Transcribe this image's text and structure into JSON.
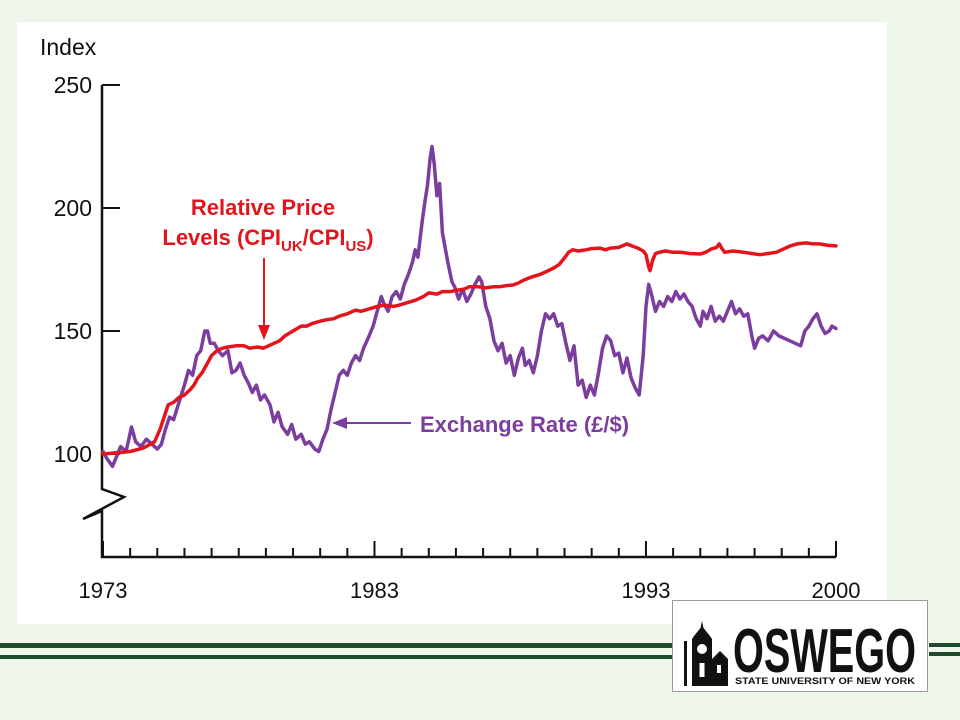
{
  "slide": {
    "background_color": "#eef5ea",
    "rule_color": "#1f4a2b"
  },
  "chart_data": {
    "type": "line",
    "ylabel": "Index",
    "xlim": [
      1973,
      2000
    ],
    "ylim": [
      100,
      250
    ],
    "y_axis_break": true,
    "x_ticks": [
      1973,
      1983,
      1993,
      2000
    ],
    "x_minor_tick_step": 1,
    "y_ticks": [
      250,
      200,
      150,
      100
    ],
    "grid": false,
    "series": [
      {
        "label_parts": [
          "Relative Price",
          "Levels (CPI",
          "UK",
          "/CPI",
          "US",
          ")"
        ],
        "color": "#e2141c",
        "points": [
          [
            1973.0,
            100
          ],
          [
            1973.5,
            100.5
          ],
          [
            1974.0,
            101
          ],
          [
            1974.5,
            102.5
          ],
          [
            1974.9,
            105
          ],
          [
            1975.1,
            110
          ],
          [
            1975.25,
            115
          ],
          [
            1975.4,
            120
          ],
          [
            1975.6,
            121
          ],
          [
            1975.8,
            123
          ],
          [
            1976.0,
            124
          ],
          [
            1976.2,
            126
          ],
          [
            1976.35,
            128
          ],
          [
            1976.5,
            131
          ],
          [
            1976.65,
            133
          ],
          [
            1976.8,
            136
          ],
          [
            1977.0,
            140
          ],
          [
            1977.2,
            142
          ],
          [
            1977.4,
            143
          ],
          [
            1977.6,
            143.5
          ],
          [
            1977.9,
            144
          ],
          [
            1978.2,
            144
          ],
          [
            1978.4,
            143
          ],
          [
            1978.7,
            143.5
          ],
          [
            1978.9,
            143
          ],
          [
            1979.1,
            144
          ],
          [
            1979.3,
            145
          ],
          [
            1979.5,
            146
          ],
          [
            1979.7,
            148
          ],
          [
            1980.0,
            150
          ],
          [
            1980.3,
            152
          ],
          [
            1980.5,
            152
          ],
          [
            1980.7,
            153
          ],
          [
            1981.0,
            154
          ],
          [
            1981.2,
            154.5
          ],
          [
            1981.5,
            155
          ],
          [
            1981.7,
            156
          ],
          [
            1982.0,
            157
          ],
          [
            1982.3,
            158.5
          ],
          [
            1982.5,
            158
          ],
          [
            1982.8,
            159
          ],
          [
            1983.1,
            160
          ],
          [
            1983.4,
            160.5
          ],
          [
            1983.7,
            160
          ],
          [
            1983.9,
            160.5
          ],
          [
            1984.2,
            161.5
          ],
          [
            1984.5,
            162.5
          ],
          [
            1984.8,
            164
          ],
          [
            1985.0,
            165.5
          ],
          [
            1985.3,
            165
          ],
          [
            1985.5,
            166
          ],
          [
            1985.8,
            166
          ],
          [
            1986.0,
            166.5
          ],
          [
            1986.3,
            167
          ],
          [
            1986.5,
            168
          ],
          [
            1986.8,
            168
          ],
          [
            1987.1,
            167.5
          ],
          [
            1987.4,
            168
          ],
          [
            1987.6,
            168
          ],
          [
            1987.9,
            168.5
          ],
          [
            1988.1,
            168.7
          ],
          [
            1988.3,
            169.5
          ],
          [
            1988.5,
            170.7
          ],
          [
            1988.8,
            172
          ],
          [
            1989.1,
            173
          ],
          [
            1989.3,
            174
          ],
          [
            1989.6,
            175.6
          ],
          [
            1989.8,
            177
          ],
          [
            1990.0,
            179.7
          ],
          [
            1990.15,
            182
          ],
          [
            1990.3,
            183
          ],
          [
            1990.5,
            182.5
          ],
          [
            1990.8,
            183
          ],
          [
            1991.0,
            183.5
          ],
          [
            1991.3,
            183.7
          ],
          [
            1991.5,
            183
          ],
          [
            1991.7,
            183.7
          ],
          [
            1992.0,
            184
          ],
          [
            1992.3,
            185.4
          ],
          [
            1992.5,
            184.5
          ],
          [
            1992.7,
            183.7
          ],
          [
            1992.9,
            182.5
          ],
          [
            1993.0,
            181
          ],
          [
            1993.1,
            176
          ],
          [
            1993.15,
            174.5
          ],
          [
            1993.25,
            179
          ],
          [
            1993.35,
            181.5
          ],
          [
            1993.5,
            182
          ],
          [
            1993.7,
            182.5
          ],
          [
            1994.0,
            182
          ],
          [
            1994.3,
            182
          ],
          [
            1994.6,
            181.5
          ],
          [
            1995.0,
            181.3
          ],
          [
            1995.2,
            182
          ],
          [
            1995.4,
            183.3
          ],
          [
            1995.6,
            184
          ],
          [
            1995.7,
            185.4
          ],
          [
            1995.8,
            183.5
          ],
          [
            1995.9,
            182
          ],
          [
            1996.2,
            182.5
          ],
          [
            1996.6,
            182
          ],
          [
            1996.9,
            181.5
          ],
          [
            1997.2,
            181
          ],
          [
            1997.5,
            181.5
          ],
          [
            1997.8,
            182
          ],
          [
            1998.0,
            183
          ],
          [
            1998.3,
            184.5
          ],
          [
            1998.6,
            185.5
          ],
          [
            1998.9,
            185.8
          ],
          [
            1999.1,
            185.5
          ],
          [
            1999.4,
            185.4
          ],
          [
            1999.7,
            184.8
          ],
          [
            2000.0,
            184.6
          ]
        ]
      },
      {
        "label_parts": [
          "Exchange Rate (£/$)"
        ],
        "color": "#7b3e9e",
        "points": [
          [
            1973.0,
            101
          ],
          [
            1973.15,
            98
          ],
          [
            1973.35,
            95
          ],
          [
            1973.5,
            99
          ],
          [
            1973.65,
            103
          ],
          [
            1973.85,
            101
          ],
          [
            1974.05,
            111
          ],
          [
            1974.2,
            105
          ],
          [
            1974.4,
            103
          ],
          [
            1974.6,
            106
          ],
          [
            1974.8,
            104
          ],
          [
            1975.0,
            102
          ],
          [
            1975.15,
            104
          ],
          [
            1975.3,
            110
          ],
          [
            1975.45,
            115
          ],
          [
            1975.6,
            114
          ],
          [
            1975.8,
            121
          ],
          [
            1976.0,
            128
          ],
          [
            1976.15,
            134
          ],
          [
            1976.3,
            132
          ],
          [
            1976.45,
            140
          ],
          [
            1976.6,
            142
          ],
          [
            1976.75,
            150
          ],
          [
            1976.85,
            150
          ],
          [
            1976.95,
            145
          ],
          [
            1977.1,
            145
          ],
          [
            1977.25,
            142
          ],
          [
            1977.4,
            140
          ],
          [
            1977.6,
            142
          ],
          [
            1977.75,
            133
          ],
          [
            1977.9,
            134
          ],
          [
            1978.05,
            137
          ],
          [
            1978.2,
            132
          ],
          [
            1978.35,
            129
          ],
          [
            1978.5,
            125
          ],
          [
            1978.65,
            128
          ],
          [
            1978.8,
            122
          ],
          [
            1978.95,
            124
          ],
          [
            1979.15,
            120
          ],
          [
            1979.3,
            113
          ],
          [
            1979.45,
            117
          ],
          [
            1979.6,
            111
          ],
          [
            1979.8,
            108
          ],
          [
            1979.95,
            112
          ],
          [
            1980.1,
            106
          ],
          [
            1980.3,
            108
          ],
          [
            1980.45,
            104
          ],
          [
            1980.6,
            105
          ],
          [
            1980.8,
            102
          ],
          [
            1980.95,
            101
          ],
          [
            1981.1,
            106
          ],
          [
            1981.25,
            110
          ],
          [
            1981.4,
            118
          ],
          [
            1981.55,
            125
          ],
          [
            1981.7,
            132
          ],
          [
            1981.85,
            134
          ],
          [
            1982.0,
            132
          ],
          [
            1982.15,
            137
          ],
          [
            1982.3,
            140
          ],
          [
            1982.45,
            138
          ],
          [
            1982.6,
            143
          ],
          [
            1982.8,
            148
          ],
          [
            1982.95,
            152
          ],
          [
            1983.1,
            158
          ],
          [
            1983.25,
            164
          ],
          [
            1983.35,
            161
          ],
          [
            1983.5,
            158
          ],
          [
            1983.65,
            164
          ],
          [
            1983.8,
            166
          ],
          [
            1983.95,
            163
          ],
          [
            1984.1,
            169
          ],
          [
            1984.25,
            173
          ],
          [
            1984.4,
            178
          ],
          [
            1984.5,
            183
          ],
          [
            1984.6,
            180
          ],
          [
            1984.75,
            194
          ],
          [
            1984.85,
            202
          ],
          [
            1984.95,
            209
          ],
          [
            1985.05,
            220
          ],
          [
            1985.12,
            225
          ],
          [
            1985.2,
            218
          ],
          [
            1985.3,
            205
          ],
          [
            1985.4,
            210
          ],
          [
            1985.5,
            190
          ],
          [
            1985.6,
            184
          ],
          [
            1985.7,
            178
          ],
          [
            1985.85,
            170
          ],
          [
            1985.95,
            168
          ],
          [
            1986.1,
            163
          ],
          [
            1986.25,
            167
          ],
          [
            1986.4,
            162
          ],
          [
            1986.55,
            165
          ],
          [
            1986.7,
            169
          ],
          [
            1986.85,
            172
          ],
          [
            1986.95,
            170
          ],
          [
            1987.1,
            160
          ],
          [
            1987.25,
            155
          ],
          [
            1987.4,
            146
          ],
          [
            1987.55,
            142
          ],
          [
            1987.7,
            145
          ],
          [
            1987.85,
            137
          ],
          [
            1988.0,
            140
          ],
          [
            1988.15,
            132
          ],
          [
            1988.3,
            139
          ],
          [
            1988.45,
            143
          ],
          [
            1988.55,
            136
          ],
          [
            1988.7,
            138
          ],
          [
            1988.85,
            133
          ],
          [
            1989.0,
            140
          ],
          [
            1989.15,
            150
          ],
          [
            1989.3,
            157
          ],
          [
            1989.45,
            155
          ],
          [
            1989.6,
            157
          ],
          [
            1989.75,
            152
          ],
          [
            1989.9,
            153
          ],
          [
            1990.05,
            145
          ],
          [
            1990.2,
            138
          ],
          [
            1990.35,
            144
          ],
          [
            1990.5,
            128
          ],
          [
            1990.65,
            130
          ],
          [
            1990.8,
            123
          ],
          [
            1990.95,
            128
          ],
          [
            1991.1,
            124
          ],
          [
            1991.25,
            133
          ],
          [
            1991.4,
            143
          ],
          [
            1991.55,
            148
          ],
          [
            1991.7,
            146
          ],
          [
            1991.85,
            140
          ],
          [
            1992.0,
            141
          ],
          [
            1992.15,
            133
          ],
          [
            1992.3,
            139
          ],
          [
            1992.45,
            131
          ],
          [
            1992.6,
            127
          ],
          [
            1992.75,
            124
          ],
          [
            1992.9,
            140
          ],
          [
            1993.0,
            160
          ],
          [
            1993.1,
            169
          ],
          [
            1993.2,
            165
          ],
          [
            1993.35,
            158
          ],
          [
            1993.5,
            162
          ],
          [
            1993.65,
            160
          ],
          [
            1993.8,
            164
          ],
          [
            1993.95,
            162
          ],
          [
            1994.1,
            166
          ],
          [
            1994.25,
            163
          ],
          [
            1994.4,
            165
          ],
          [
            1994.55,
            162
          ],
          [
            1994.7,
            160
          ],
          [
            1994.85,
            155
          ],
          [
            1995.0,
            152
          ],
          [
            1995.1,
            158
          ],
          [
            1995.25,
            155
          ],
          [
            1995.4,
            160
          ],
          [
            1995.55,
            154
          ],
          [
            1995.7,
            156
          ],
          [
            1995.85,
            154
          ],
          [
            1996.0,
            158
          ],
          [
            1996.15,
            162
          ],
          [
            1996.3,
            157
          ],
          [
            1996.45,
            159
          ],
          [
            1996.6,
            156
          ],
          [
            1996.75,
            157
          ],
          [
            1996.9,
            148
          ],
          [
            1997.0,
            143
          ],
          [
            1997.15,
            147
          ],
          [
            1997.3,
            148
          ],
          [
            1997.5,
            146
          ],
          [
            1997.7,
            150
          ],
          [
            1997.9,
            148
          ],
          [
            1998.1,
            147
          ],
          [
            1998.3,
            146
          ],
          [
            1998.5,
            145
          ],
          [
            1998.7,
            144
          ],
          [
            1998.85,
            150
          ],
          [
            1999.0,
            152
          ],
          [
            1999.15,
            155
          ],
          [
            1999.3,
            157
          ],
          [
            1999.45,
            152
          ],
          [
            1999.6,
            149
          ],
          [
            1999.75,
            150
          ],
          [
            1999.85,
            152
          ],
          [
            2000.0,
            151
          ]
        ]
      }
    ]
  },
  "logo": {
    "icon": "clock-tower-icon",
    "name": "OSWEGO",
    "tagline": "STATE UNIVERSITY OF NEW YORK"
  }
}
